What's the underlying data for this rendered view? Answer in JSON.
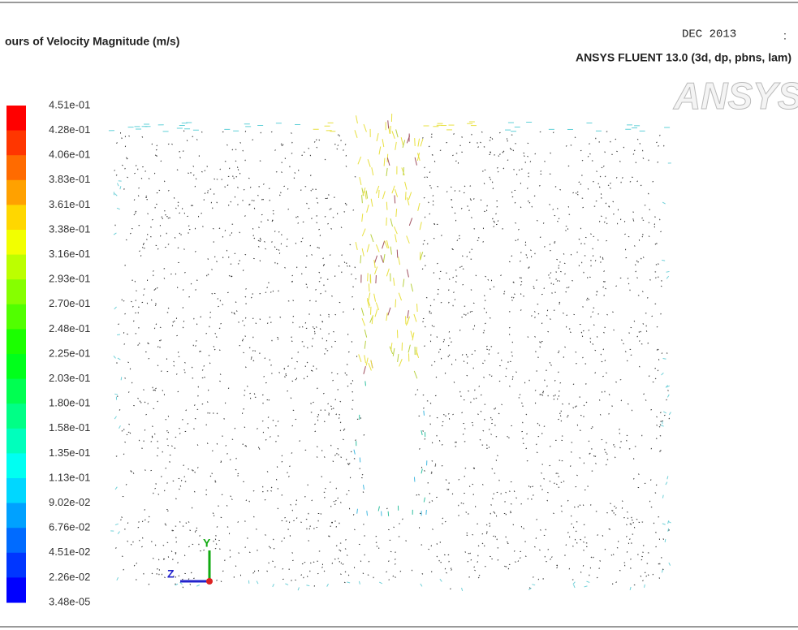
{
  "header": {
    "title": "ours of Velocity Magnitude (m/s)",
    "date": "DEC 2013",
    "separator": ":",
    "software": "ANSYS FLUENT 13.0 (3d, dp, pbns, lam)",
    "logo": "ANSYS"
  },
  "legend": {
    "labels": [
      "4.51e-01",
      "4.28e-01",
      "4.06e-01",
      "3.83e-01",
      "3.61e-01",
      "3.38e-01",
      "3.16e-01",
      "2.93e-01",
      "2.70e-01",
      "2.48e-01",
      "2.25e-01",
      "2.03e-01",
      "1.80e-01",
      "1.58e-01",
      "1.35e-01",
      "1.13e-01",
      "9.02e-02",
      "6.76e-02",
      "4.51e-02",
      "2.26e-02",
      "3.48e-05"
    ]
  },
  "axes": {
    "horizontal": "Z",
    "vertical": "Y"
  }
}
